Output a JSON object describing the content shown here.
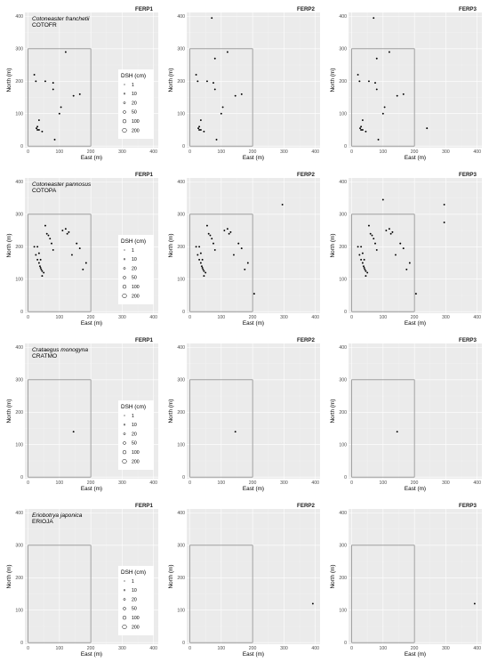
{
  "chart_data": {
    "type": "scatter",
    "title": "",
    "xlabel": "East (m)",
    "ylabel": "North (m)",
    "xlim": [
      -10,
      415
    ],
    "ylim": [
      -5,
      412
    ],
    "x_ticks": [
      0,
      100,
      200,
      300,
      400
    ],
    "y_ticks": [
      0,
      100,
      200,
      300,
      400
    ],
    "plot_rectangle": {
      "x": [
        0,
        200
      ],
      "y": [
        0,
        300
      ]
    },
    "grid": true,
    "columns": [
      "FERP1",
      "FERP2",
      "FERP3"
    ],
    "legend": {
      "title": "DSH (cm)",
      "placement": "right-inside",
      "values": [
        1,
        10,
        20,
        50,
        100,
        200
      ],
      "labels": [
        "1",
        "10",
        "20",
        "50",
        "100",
        "200"
      ]
    },
    "species": [
      {
        "name": "Cotoneaster franchetii",
        "code": "COTOFR",
        "show_legend": true,
        "panels": [
          {
            "x": [
              20,
              25,
              27,
              30,
              35,
              30,
              35,
              45,
              55,
              80,
              80,
              85,
              100,
              105,
              120,
              145,
              165
            ],
            "y": [
              220,
              200,
              55,
              60,
              80,
              50,
              50,
              45,
              200,
              195,
              175,
              20,
              100,
              120,
              290,
              155,
              160
            ]
          },
          {
            "x": [
              20,
              25,
              27,
              30,
              35,
              30,
              35,
              45,
              55,
              80,
              75,
              80,
              85,
              100,
              105,
              120,
              145,
              165,
              70
            ],
            "y": [
              220,
              200,
              55,
              60,
              80,
              50,
              50,
              45,
              200,
              270,
              195,
              175,
              20,
              100,
              120,
              290,
              155,
              160,
              395
            ]
          },
          {
            "x": [
              20,
              25,
              27,
              30,
              35,
              30,
              35,
              45,
              55,
              80,
              75,
              80,
              85,
              100,
              105,
              120,
              145,
              165,
              70,
              240
            ],
            "y": [
              220,
              200,
              55,
              60,
              80,
              50,
              50,
              45,
              200,
              270,
              195,
              175,
              20,
              100,
              120,
              290,
              155,
              160,
              395,
              55
            ]
          }
        ]
      },
      {
        "name": "Cotoneaster pannosus",
        "code": "COTOPA",
        "show_legend": true,
        "panels": [
          {
            "x": [
              20,
              25,
              30,
              35,
              38,
              40,
              42,
              45,
              50,
              55,
              60,
              65,
              70,
              75,
              80,
              30,
              35,
              40,
              45,
              110,
              120,
              125,
              130,
              140,
              155,
              165,
              175,
              185
            ],
            "y": [
              200,
              175,
              160,
              150,
              140,
              135,
              130,
              125,
              120,
              265,
              240,
              235,
              225,
              210,
              190,
              200,
              180,
              160,
              110,
              250,
              255,
              240,
              245,
              175,
              210,
              195,
              130,
              150
            ]
          },
          {
            "x": [
              20,
              25,
              30,
              35,
              38,
              40,
              42,
              45,
              50,
              55,
              60,
              65,
              70,
              75,
              80,
              30,
              35,
              40,
              45,
              110,
              120,
              125,
              130,
              140,
              155,
              165,
              175,
              185,
              205,
              295
            ],
            "y": [
              200,
              175,
              160,
              150,
              140,
              135,
              130,
              125,
              120,
              265,
              240,
              235,
              225,
              210,
              190,
              200,
              180,
              160,
              110,
              250,
              255,
              240,
              245,
              175,
              210,
              195,
              130,
              150,
              55,
              330
            ]
          },
          {
            "x": [
              20,
              25,
              30,
              35,
              38,
              40,
              42,
              45,
              50,
              55,
              60,
              65,
              70,
              75,
              80,
              30,
              35,
              40,
              45,
              110,
              120,
              125,
              130,
              140,
              155,
              165,
              175,
              185,
              205,
              295,
              100,
              295
            ],
            "y": [
              200,
              175,
              160,
              150,
              140,
              135,
              130,
              125,
              120,
              265,
              240,
              235,
              225,
              210,
              190,
              200,
              180,
              160,
              110,
              250,
              255,
              240,
              245,
              175,
              210,
              195,
              130,
              150,
              55,
              330,
              345,
              275
            ]
          }
        ]
      },
      {
        "name": "Crataegus monogyna",
        "code": "CRATMO",
        "show_legend": true,
        "panels": [
          {
            "x": [
              145
            ],
            "y": [
              140
            ]
          },
          {
            "x": [
              145
            ],
            "y": [
              140
            ]
          },
          {
            "x": [
              145
            ],
            "y": [
              140
            ]
          }
        ]
      },
      {
        "name": "Eriobotrya japonica",
        "code": "ERIOJA",
        "show_legend": true,
        "panels": [
          {
            "x": [],
            "y": []
          },
          {
            "x": [
              392
            ],
            "y": [
              120
            ]
          },
          {
            "x": [
              392
            ],
            "y": [
              120
            ]
          }
        ]
      }
    ]
  }
}
